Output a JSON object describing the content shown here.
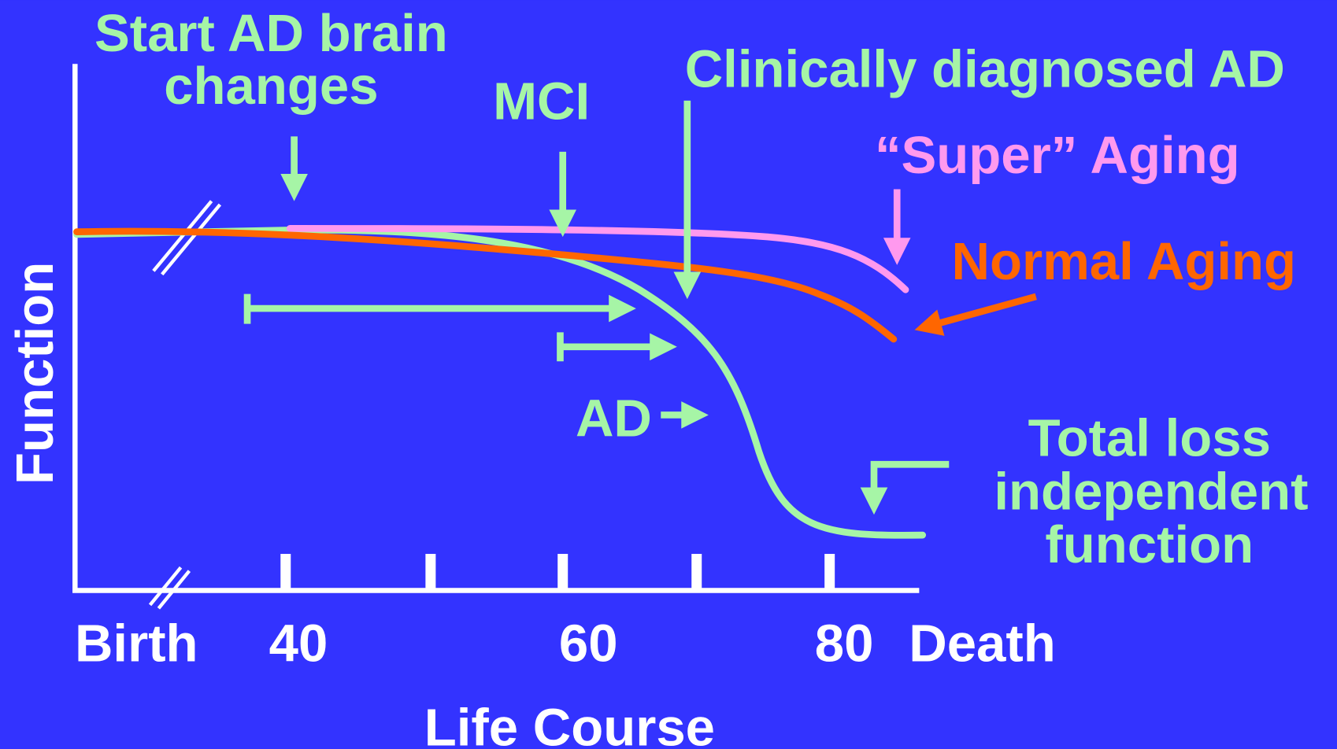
{
  "axes": {
    "y_label": "Function",
    "x_label": "Life Course",
    "x_labels": [
      "Birth",
      "40",
      "60",
      "80",
      "Death"
    ]
  },
  "annotations": {
    "start_ad": [
      "Start AD brain",
      "changes"
    ],
    "mci": "MCI",
    "clinical": "Clinically diagnosed AD",
    "super_aging": "“Super” Aging",
    "normal_aging": "Normal Aging",
    "ad": "AD",
    "total_loss": [
      "Total loss",
      "independent",
      "function"
    ]
  }
}
